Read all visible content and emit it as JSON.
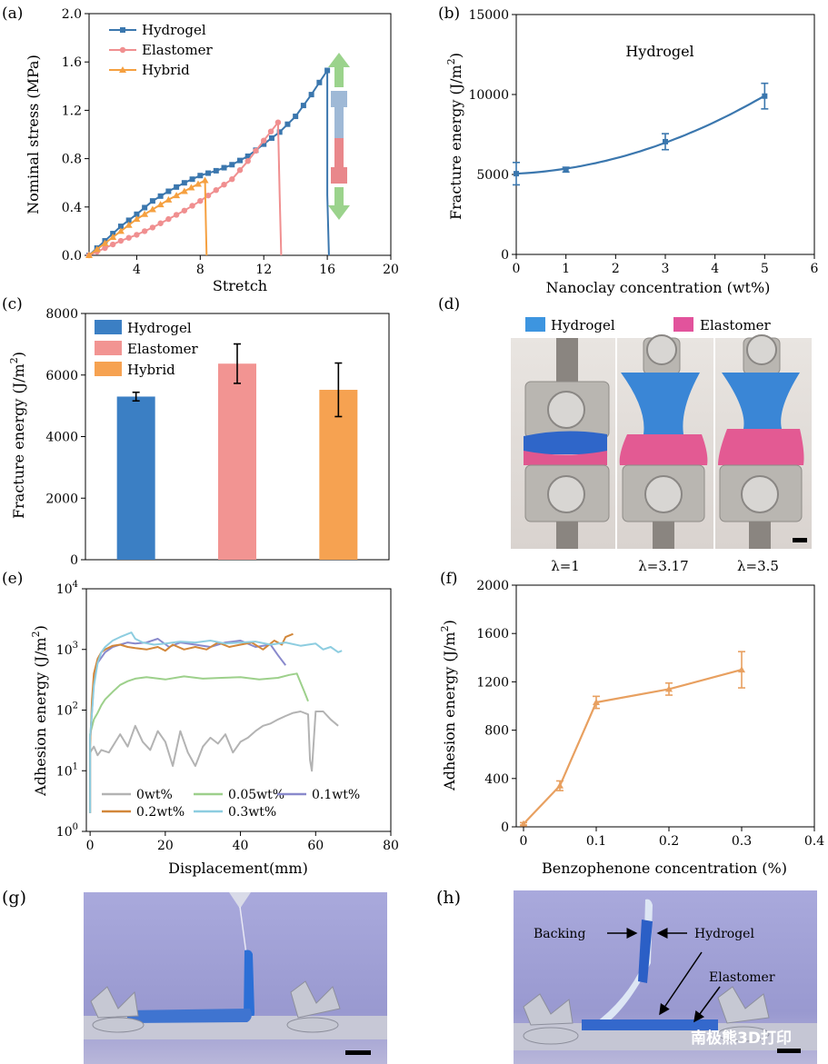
{
  "chart_data": [
    {
      "id": "a",
      "type": "line",
      "panel_label": "(a)",
      "xlabel": "Stretch",
      "ylabel": "Nominal stress (MPa)",
      "xlim": [
        1,
        20
      ],
      "ylim": [
        0,
        2.0
      ],
      "xticks": [
        4,
        8,
        12,
        16,
        20
      ],
      "xtick_labels": [
        "4",
        "8",
        "12",
        "16",
        "20"
      ],
      "yticks": [
        0,
        0.4,
        0.8,
        1.2,
        1.6,
        2.0
      ],
      "ytick_labels": [
        "0.0",
        "0.4",
        "0.8",
        "1.2",
        "1.6",
        "2.0"
      ],
      "legend_position": "top-left",
      "series": [
        {
          "name": "Hydrogel",
          "color": "#3b77ae",
          "marker": "square",
          "x": [
            1,
            2,
            3,
            4,
            5,
            6,
            7,
            8,
            9,
            10,
            11,
            12,
            13,
            14,
            15,
            16,
            16,
            16.1
          ],
          "y": [
            0,
            0.12,
            0.24,
            0.34,
            0.45,
            0.53,
            0.6,
            0.66,
            0.7,
            0.75,
            0.82,
            0.92,
            1.02,
            1.15,
            1.33,
            1.53,
            0.5,
            0
          ]
        },
        {
          "name": "Elastomer",
          "color": "#f08f90",
          "marker": "circle",
          "x": [
            1,
            2,
            3,
            4,
            5,
            6,
            7,
            8,
            9,
            10,
            11,
            12,
            12.9,
            13,
            13.1
          ],
          "y": [
            0,
            0.06,
            0.12,
            0.17,
            0.23,
            0.3,
            0.37,
            0.45,
            0.54,
            0.63,
            0.78,
            0.95,
            1.1,
            0.5,
            0
          ]
        },
        {
          "name": "Hybrid",
          "color": "#f5a040",
          "marker": "triangle",
          "x": [
            1,
            2,
            3,
            4,
            5,
            6,
            7,
            8.3,
            8.35,
            8.4
          ],
          "y": [
            0,
            0.1,
            0.2,
            0.3,
            0.38,
            0.46,
            0.53,
            0.62,
            0.3,
            0
          ]
        }
      ]
    },
    {
      "id": "b",
      "type": "line",
      "panel_label": "(b)",
      "xlabel": "Nanoclay concentration (wt%)",
      "ylabel": "Fracture energy (J/m²)",
      "ylabel_parts": {
        "main": "Fracture energy (J/m",
        "sup": "2",
        "end": ")"
      },
      "xlim": [
        0,
        6
      ],
      "ylim": [
        0,
        15000
      ],
      "xticks": [
        0,
        1,
        2,
        3,
        4,
        5,
        6
      ],
      "xtick_labels": [
        "0",
        "1",
        "2",
        "3",
        "4",
        "5",
        "6"
      ],
      "yticks": [
        0,
        5000,
        10000,
        15000
      ],
      "ytick_labels": [
        "0",
        "5000",
        "10000",
        "15000"
      ],
      "annotation": "Hydrogel",
      "series": [
        {
          "name": "Hydrogel",
          "color": "#3b77ae",
          "x": [
            0,
            1,
            3,
            5
          ],
          "y": [
            5050,
            5300,
            7050,
            9900
          ],
          "err": [
            700,
            150,
            500,
            800
          ]
        }
      ]
    },
    {
      "id": "c",
      "type": "bar",
      "panel_label": "(c)",
      "ylabel": "Fracture energy (J/m²)",
      "ylabel_parts": {
        "main": "Fracture energy (J/m",
        "sup": "2",
        "end": ")"
      },
      "ylim": [
        0,
        8000
      ],
      "yticks": [
        0,
        2000,
        4000,
        6000,
        8000
      ],
      "ytick_labels": [
        "0",
        "2000",
        "4000",
        "6000",
        "8000"
      ],
      "legend_position": "top-left",
      "categories": [
        "Hydrogel",
        "Elastomer",
        "Hybrid"
      ],
      "values": [
        5300,
        6370,
        5520
      ],
      "err": [
        140,
        640,
        870
      ],
      "colors": [
        "#3b7fc4",
        "#f29492",
        "#f6a251"
      ]
    },
    {
      "id": "e",
      "type": "line",
      "panel_label": "(e)",
      "xlabel": "Displacement(mm)",
      "ylabel": "Adhesion energy (J/m²)",
      "ylabel_parts": {
        "main": "Adhesion energy (J/m",
        "sup": "2",
        "end": ")"
      },
      "yscale": "log",
      "xlim": [
        -1,
        80
      ],
      "ylim": [
        1,
        10000
      ],
      "xticks": [
        0,
        20,
        40,
        60,
        80
      ],
      "xtick_labels": [
        "0",
        "20",
        "40",
        "60",
        "80"
      ],
      "yticks": [
        1,
        10,
        100,
        1000,
        10000
      ],
      "ytick_bases": [
        "10",
        "10",
        "10",
        "10",
        "10"
      ],
      "ytick_exps": [
        "0",
        "1",
        "2",
        "3",
        "4"
      ],
      "legend_position": "bottom-center",
      "series": [
        {
          "name": "0wt%",
          "color": "#b3b3b3",
          "x": [
            0,
            1,
            2,
            3,
            5,
            8,
            10,
            12,
            14,
            16,
            18,
            20,
            22,
            24,
            26,
            28,
            30,
            32,
            34,
            36,
            38,
            40,
            42,
            44,
            46,
            48,
            50,
            52,
            54,
            56,
            58,
            58.5,
            59,
            60,
            62,
            64,
            66
          ],
          "y": [
            20,
            25,
            18,
            22,
            20,
            40,
            25,
            55,
            30,
            22,
            45,
            30,
            12,
            45,
            20,
            12,
            25,
            35,
            28,
            40,
            20,
            30,
            35,
            45,
            55,
            60,
            70,
            80,
            90,
            95,
            85,
            15,
            10,
            95,
            95,
            70,
            55
          ]
        },
        {
          "name": "0.05wt%",
          "color": "#9dd08b",
          "x": [
            0,
            1,
            2,
            3,
            4,
            6,
            8,
            10,
            12,
            15,
            20,
            25,
            30,
            35,
            40,
            45,
            50,
            53,
            55,
            57,
            58
          ],
          "y": [
            40,
            70,
            90,
            120,
            150,
            200,
            260,
            300,
            330,
            350,
            320,
            360,
            330,
            340,
            350,
            320,
            340,
            380,
            400,
            200,
            140
          ]
        },
        {
          "name": "0.1wt%",
          "color": "#8989cc",
          "x": [
            0,
            1,
            2,
            4,
            6,
            8,
            10,
            12,
            15,
            18,
            21,
            24,
            28,
            32,
            36,
            40,
            44,
            48,
            50,
            52
          ],
          "y": [
            30,
            300,
            600,
            900,
            1100,
            1200,
            1300,
            1250,
            1300,
            1500,
            1100,
            1300,
            1200,
            1100,
            1300,
            1400,
            1100,
            1200,
            800,
            550
          ]
        },
        {
          "name": "0.2wt%",
          "color": "#d2873a",
          "x": [
            0,
            0.5,
            1,
            2,
            3,
            4,
            6,
            8,
            10,
            12,
            15,
            18,
            20,
            22,
            25,
            28,
            31,
            34,
            37,
            40,
            43,
            46,
            49,
            51,
            52,
            54
          ],
          "y": [
            25,
            150,
            400,
            700,
            900,
            1000,
            1150,
            1200,
            1100,
            1050,
            1000,
            1100,
            950,
            1200,
            1000,
            1100,
            1000,
            1300,
            1100,
            1200,
            1300,
            1000,
            1400,
            1200,
            1600,
            1800
          ]
        },
        {
          "name": "0.3wt%",
          "color": "#8dcde0",
          "x": [
            0,
            1,
            2,
            3,
            4,
            6,
            8,
            10,
            11,
            12,
            14,
            17,
            20,
            24,
            28,
            32,
            36,
            40,
            44,
            48,
            52,
            56,
            60,
            62,
            64,
            66,
            67
          ],
          "y": [
            35,
            250,
            600,
            900,
            1100,
            1400,
            1600,
            1800,
            1900,
            1500,
            1300,
            1200,
            1250,
            1350,
            1300,
            1400,
            1250,
            1300,
            1350,
            1200,
            1300,
            1150,
            1250,
            1000,
            1100,
            900,
            950
          ]
        }
      ]
    },
    {
      "id": "f",
      "type": "line",
      "panel_label": "(f)",
      "xlabel": "Benzophenone concentration (%)",
      "ylabel": "Adhesion energy (J/m²)",
      "ylabel_parts": {
        "main": "Adhesion energy (J/m",
        "sup": "2",
        "end": ")"
      },
      "xlim": [
        -0.01,
        0.4
      ],
      "ylim": [
        0,
        2000
      ],
      "xticks": [
        0,
        0.1,
        0.2,
        0.3,
        0.4
      ],
      "xtick_labels": [
        "0",
        "0.1",
        "0.2",
        "0.3",
        "0.4"
      ],
      "yticks": [
        0,
        400,
        800,
        1200,
        1600,
        2000
      ],
      "ytick_labels": [
        "0",
        "400",
        "800",
        "1200",
        "1600",
        "2000"
      ],
      "series": [
        {
          "name": "",
          "color": "#e8a060",
          "x": [
            0,
            0.05,
            0.1,
            0.2,
            0.3
          ],
          "y": [
            25,
            340,
            1030,
            1140,
            1300
          ],
          "err": [
            10,
            40,
            50,
            50,
            150
          ]
        }
      ]
    }
  ],
  "panel_d": {
    "label": "(d)",
    "legend": [
      {
        "label": "Hydrogel",
        "color": "#3d95e0"
      },
      {
        "label": "Elastomer",
        "color": "#e2539c"
      }
    ],
    "captions": [
      "λ=1",
      "λ=3.17",
      "λ=3.5"
    ]
  },
  "panel_g": {
    "label": "(g)"
  },
  "panel_h": {
    "label": "(h)",
    "annotations": {
      "backing": "Backing",
      "hydrogel": "Hydrogel",
      "elastomer": "Elastomer"
    },
    "watermark": "南极熊3D打印"
  }
}
